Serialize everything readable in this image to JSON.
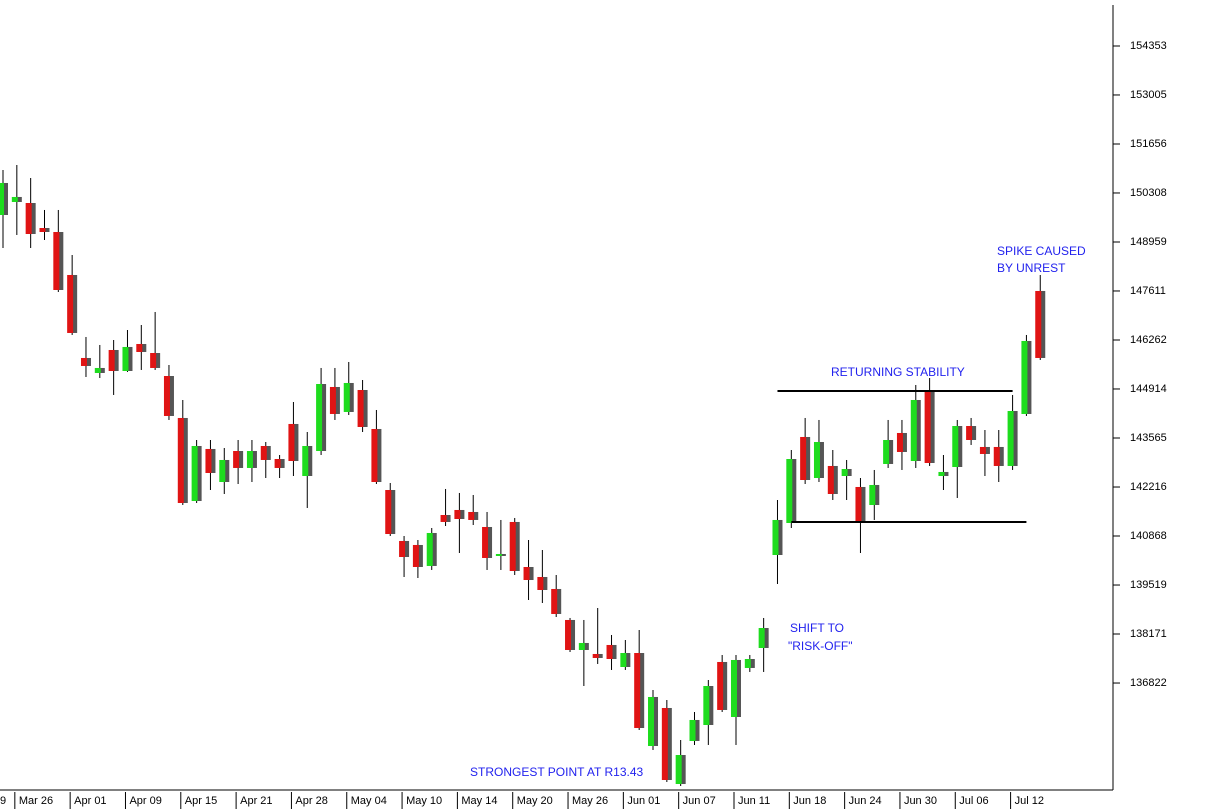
{
  "chart_data": {
    "type": "candlestick",
    "partial_label": "9",
    "categories": [
      null,
      "Mar 26",
      null,
      null,
      null,
      "Apr 01",
      null,
      null,
      null,
      "Apr 09",
      null,
      null,
      null,
      "Apr 15",
      null,
      null,
      null,
      "Apr 21",
      null,
      null,
      null,
      "Apr 28",
      null,
      null,
      null,
      "May 04",
      null,
      null,
      null,
      "May 10",
      null,
      null,
      null,
      "May 14",
      null,
      null,
      null,
      "May 20",
      null,
      null,
      null,
      "May 26",
      null,
      null,
      null,
      "Jun 01",
      null,
      null,
      null,
      "Jun 07",
      null,
      null,
      null,
      "Jun 11",
      null,
      null,
      null,
      "Jun 18",
      null,
      null,
      null,
      "Jun 24",
      null,
      null,
      null,
      "Jun 30",
      null,
      null,
      null,
      "Jul 06",
      null,
      null,
      null,
      "Jul 12",
      null,
      null
    ],
    "open": [
      149702,
      150060,
      150032,
      149344,
      149234,
      148051,
      145767,
      145354,
      145987,
      145409,
      146152,
      145904,
      145271,
      144116,
      141831,
      143263,
      142354,
      143207,
      142740,
      143345,
      142987,
      143951,
      142519,
      143207,
      144969,
      144281,
      144886,
      143813,
      142134,
      140731,
      140621,
      140043,
      141446,
      141584,
      141529,
      141116,
      140318,
      141254,
      140015,
      139740,
      139410,
      138557,
      137731,
      137621,
      137869,
      137263,
      137648,
      135089,
      136135,
      134043,
      135227,
      135667,
      137401,
      135887,
      137236,
      137786,
      140345,
      141226,
      143593,
      142464,
      142795,
      142519,
      142217,
      141721,
      142850,
      143703,
      142932,
      144831,
      142519,
      142767,
      143895,
      143318,
      143318,
      142795,
      144226,
      147611
    ],
    "high": [
      150941,
      151078,
      150720,
      149840,
      149840,
      148601,
      146345,
      146125,
      146262,
      146537,
      146675,
      147033,
      145574,
      144611,
      143510,
      143510,
      143290,
      143510,
      143510,
      143455,
      143097,
      144556,
      143730,
      145492,
      145492,
      145657,
      145161,
      144336,
      142327,
      140868,
      140758,
      141088,
      142162,
      142052,
      141997,
      141529,
      141309,
      141364,
      140758,
      140483,
      139795,
      138612,
      138557,
      138887,
      138144,
      138006,
      138281,
      136630,
      136355,
      135254,
      136025,
      136905,
      137593,
      137593,
      137593,
      138612,
      141859,
      143235,
      144116,
      144061,
      143235,
      142960,
      142464,
      142685,
      144061,
      144061,
      145024,
      145216,
      143097,
      144061,
      144116,
      143785,
      143785,
      144749,
      146400,
      148051
    ],
    "low": [
      148794,
      149152,
      148794,
      149014,
      147583,
      146400,
      145244,
      145216,
      144749,
      145382,
      145437,
      145437,
      144061,
      141721,
      141776,
      142134,
      142024,
      142299,
      142354,
      142464,
      142464,
      142519,
      141639,
      143097,
      144061,
      144198,
      143730,
      142299,
      140868,
      139740,
      139712,
      139933,
      141143,
      140400,
      141171,
      139933,
      139933,
      139795,
      139107,
      139024,
      138639,
      137676,
      136740,
      137346,
      137181,
      137181,
      135529,
      134979,
      134098,
      133988,
      135117,
      135117,
      136025,
      135117,
      137126,
      137126,
      139547,
      141088,
      142299,
      142354,
      141859,
      141859,
      140400,
      141309,
      142740,
      142685,
      142740,
      142795,
      142134,
      141914,
      143373,
      142519,
      142354,
      142685,
      144171,
      145712
    ],
    "close": [
      150583,
      150198,
      149179,
      149234,
      147638,
      146455,
      145547,
      145492,
      145409,
      146070,
      145932,
      145492,
      144171,
      141776,
      143345,
      142602,
      142960,
      142740,
      143207,
      142960,
      142740,
      142932,
      143345,
      145051,
      144226,
      145079,
      143868,
      142354,
      140923,
      140290,
      140015,
      140951,
      141254,
      141336,
      141309,
      140263,
      140373,
      139905,
      139657,
      139382,
      138722,
      137731,
      137924,
      137511,
      137483,
      137648,
      135584,
      136438,
      134153,
      134841,
      135805,
      136740,
      136080,
      137456,
      137483,
      138336,
      141309,
      142987,
      142409,
      143455,
      142024,
      142712,
      141281,
      142272,
      143510,
      143180,
      144611,
      142877,
      142630,
      143895,
      143510,
      143125,
      142795,
      144308,
      146235,
      145767
    ],
    "up_color": "#1edc1e",
    "down_color": "#e01414",
    "ylim": [
      133878,
      155481
    ],
    "yticks": [
      154353,
      153005,
      151656,
      150308,
      148959,
      147611,
      146262,
      144914,
      143565,
      142216,
      140868,
      139519,
      138171,
      136822
    ],
    "levels": [
      {
        "value": 144859,
        "start": 56,
        "end": 73
      },
      {
        "value": 141254,
        "start": 57,
        "end": 74
      }
    ],
    "annotations": [
      "STRONGEST POINT AT R13.43",
      "SHIFT TO",
      "\"RISK-OFF\"",
      "RETURNING STABILITY",
      "SPIKE CAUSED",
      "BY UNREST"
    ]
  }
}
